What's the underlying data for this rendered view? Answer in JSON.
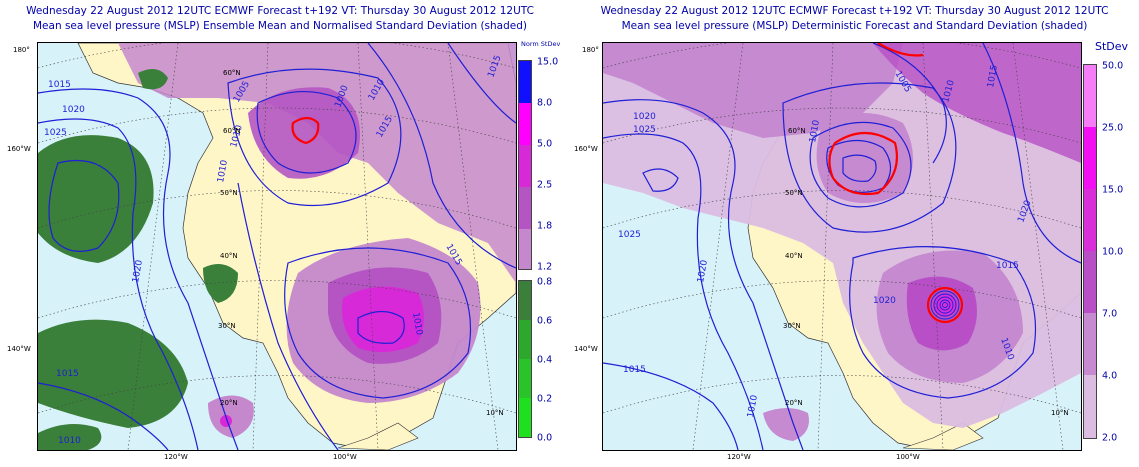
{
  "left_panel": {
    "title_line1": "Wednesday 22 August 2012 12UTC ECMWF Forecast t+192  VT: Thursday 30 August 2012 12UTC",
    "title_line2": "Mean sea level pressure (MSLP) Ensemble Mean and Normalised Standard Deviation (shaded)",
    "legend_title": "Norm StDev",
    "legend_upper": [
      {
        "label": "15.0",
        "color": "#1010ff"
      },
      {
        "label": "8.0",
        "color": "#ff00ff"
      },
      {
        "label": "5.0",
        "color": "#d829d8"
      },
      {
        "label": "2.5",
        "color": "#b455c3"
      },
      {
        "label": "1.8",
        "color": "#c588cc"
      }
    ],
    "legend_upper_bottom": "1.2",
    "legend_lower": [
      {
        "label": "0.8",
        "color": "#3a7f3a"
      },
      {
        "label": "0.6",
        "color": "#2da82d"
      },
      {
        "label": "0.4",
        "color": "#2ac42a"
      },
      {
        "label": "0.2",
        "color": "#1fe01f"
      }
    ],
    "legend_lower_bottom": "0.0",
    "isobar_labels": [
      "1015",
      "1020",
      "1025",
      "1005",
      "1000",
      "1010",
      "1015",
      "1010",
      "1015",
      "1010",
      "1020",
      "1015",
      "1010",
      "1010",
      "1015"
    ],
    "lat_labels": [
      "60°N",
      "50°N",
      "40°N",
      "30°N",
      "20°N",
      "10°N"
    ],
    "lon_labels_edge": [
      "180°",
      "160°W",
      "140°W",
      "120°W",
      "100°W"
    ]
  },
  "right_panel": {
    "title_line1": "Wednesday 22 August 2012 12UTC ECMWF Forecast t+192  VT: Thursday 30 August 2012 12UTC",
    "title_line2": "Mean sea level pressure (MSLP) Deterministic Forecast and Standard Deviation (shaded)",
    "legend_title": "StDev",
    "legend": [
      {
        "label": "50.0",
        "color": "#f57df5"
      },
      {
        "label": "25.0",
        "color": "#f210f2"
      },
      {
        "label": "15.0",
        "color": "#d82fd8"
      },
      {
        "label": "10.0",
        "color": "#b84fc6"
      },
      {
        "label": "7.0",
        "color": "#c58ad0"
      },
      {
        "label": "4.0",
        "color": "#dbbde2"
      }
    ],
    "legend_bottom": "2.0",
    "isobar_labels": [
      "1005",
      "1010",
      "1020",
      "1025",
      "1010",
      "1015",
      "1020",
      "1025",
      "1020",
      "1015",
      "1010",
      "1015",
      "1010",
      "1020"
    ],
    "lat_labels": [
      "60°N",
      "50°N",
      "40°N",
      "30°N",
      "20°N",
      "10°N"
    ],
    "lon_labels_edge": [
      "180°",
      "160°W",
      "140°W",
      "120°W",
      "100°W"
    ]
  },
  "colors": {
    "ocean": "#d8f2fa",
    "land": "#fff6c8",
    "isobar": "#1f1fd6",
    "title": "#0000a8",
    "low_contour": "#ff0000"
  }
}
